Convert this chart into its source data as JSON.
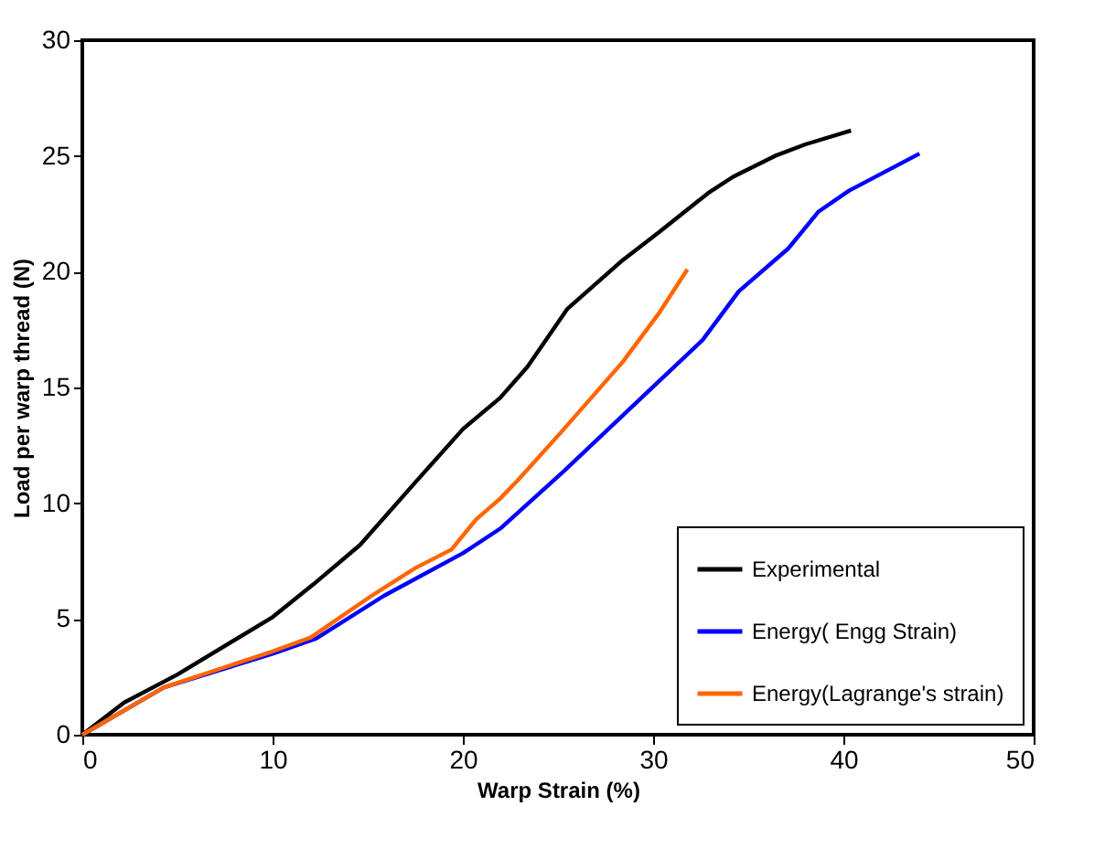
{
  "chart_data": {
    "type": "line",
    "xlabel": "Warp Strain (%)",
    "ylabel": "Load per warp thread (N)",
    "xlim": [
      0,
      50
    ],
    "xticks": [
      0,
      10,
      20,
      30,
      40,
      50
    ],
    "ylim": [
      0,
      30
    ],
    "yticks": [
      0,
      5,
      10,
      15,
      20,
      25,
      30
    ],
    "grid": false,
    "legend": "bottom right",
    "marker": "none",
    "line_style": "solid",
    "series": [
      {
        "name": "Experimental",
        "color": "#000000",
        "x": [
          0,
          2.2,
          5,
          10,
          12.15,
          14.6,
          17.5,
          20,
          21.96,
          23.4,
          25.5,
          28.4,
          30.3,
          32.9,
          34.2,
          36.4,
          38,
          40.4
        ],
        "values": [
          0,
          1.39,
          2.6,
          5.08,
          6.5,
          8.2,
          10.9,
          13.2,
          14.55,
          15.9,
          18.4,
          20.5,
          21.7,
          23.4,
          24.1,
          25,
          25.5,
          26.1
        ]
      },
      {
        "name": "Energy( Engg Strain)",
        "color": "#0000ff",
        "x": [
          0,
          4.3,
          10,
          12.3,
          15.85,
          20,
          21.96,
          25.2,
          29.7,
          32.6,
          34.5,
          37.1,
          38.7,
          40.3,
          44
        ],
        "values": [
          0,
          2.05,
          3.5,
          4.16,
          6,
          7.84,
          8.9,
          11.3,
          14.8,
          17.05,
          19.15,
          21,
          22.6,
          23.5,
          25.1
        ]
      },
      {
        "name": "Energy(Lagrange's strain)",
        "color": "#ff6600",
        "x": [
          0,
          4.3,
          10,
          12,
          15.2,
          17.5,
          19.4,
          20.7,
          21.96,
          22.9,
          25.2,
          28.4,
          30.3,
          31.8
        ],
        "values": [
          0,
          2.05,
          3.6,
          4.2,
          6,
          7.2,
          8,
          9.3,
          10.2,
          11,
          13.1,
          16.1,
          18.2,
          20.1
        ]
      }
    ]
  }
}
